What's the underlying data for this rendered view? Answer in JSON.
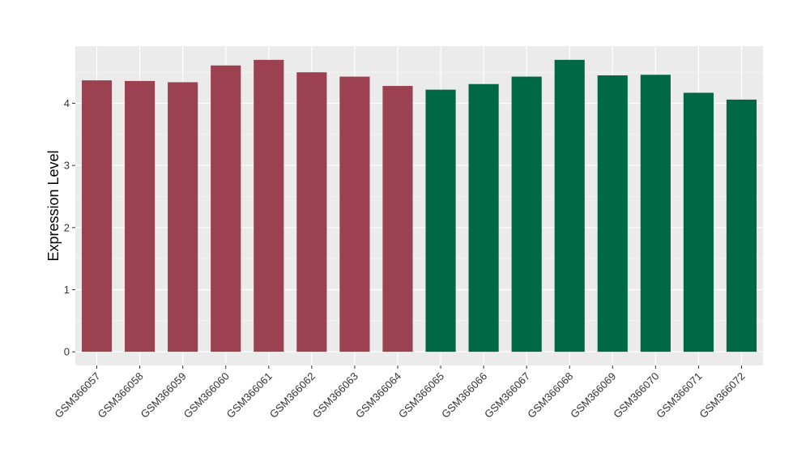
{
  "chart_data": {
    "type": "bar",
    "title": "",
    "xlabel": "",
    "ylabel": "Expression Level",
    "ylim": [
      -0.22,
      4.92
    ],
    "yticks": [
      0,
      1,
      2,
      3,
      4
    ],
    "grid": true,
    "legend": "none",
    "background": "#EBEBEB",
    "categories": [
      "GSM366057",
      "GSM366058",
      "GSM366059",
      "GSM366060",
      "GSM366061",
      "GSM366062",
      "GSM366063",
      "GSM366064",
      "GSM366065",
      "GSM366066",
      "GSM366067",
      "GSM366068",
      "GSM366069",
      "GSM366070",
      "GSM366071",
      "GSM366072"
    ],
    "values": [
      4.37,
      4.36,
      4.34,
      4.61,
      4.7,
      4.5,
      4.43,
      4.28,
      4.22,
      4.31,
      4.43,
      4.7,
      4.45,
      4.46,
      4.17,
      4.06
    ],
    "bar_colors": [
      "#9B4150",
      "#9B4150",
      "#9B4150",
      "#9B4150",
      "#9B4150",
      "#9B4150",
      "#9B4150",
      "#9B4150",
      "#006845",
      "#006845",
      "#006845",
      "#006845",
      "#006845",
      "#006845",
      "#006845",
      "#006845"
    ]
  }
}
